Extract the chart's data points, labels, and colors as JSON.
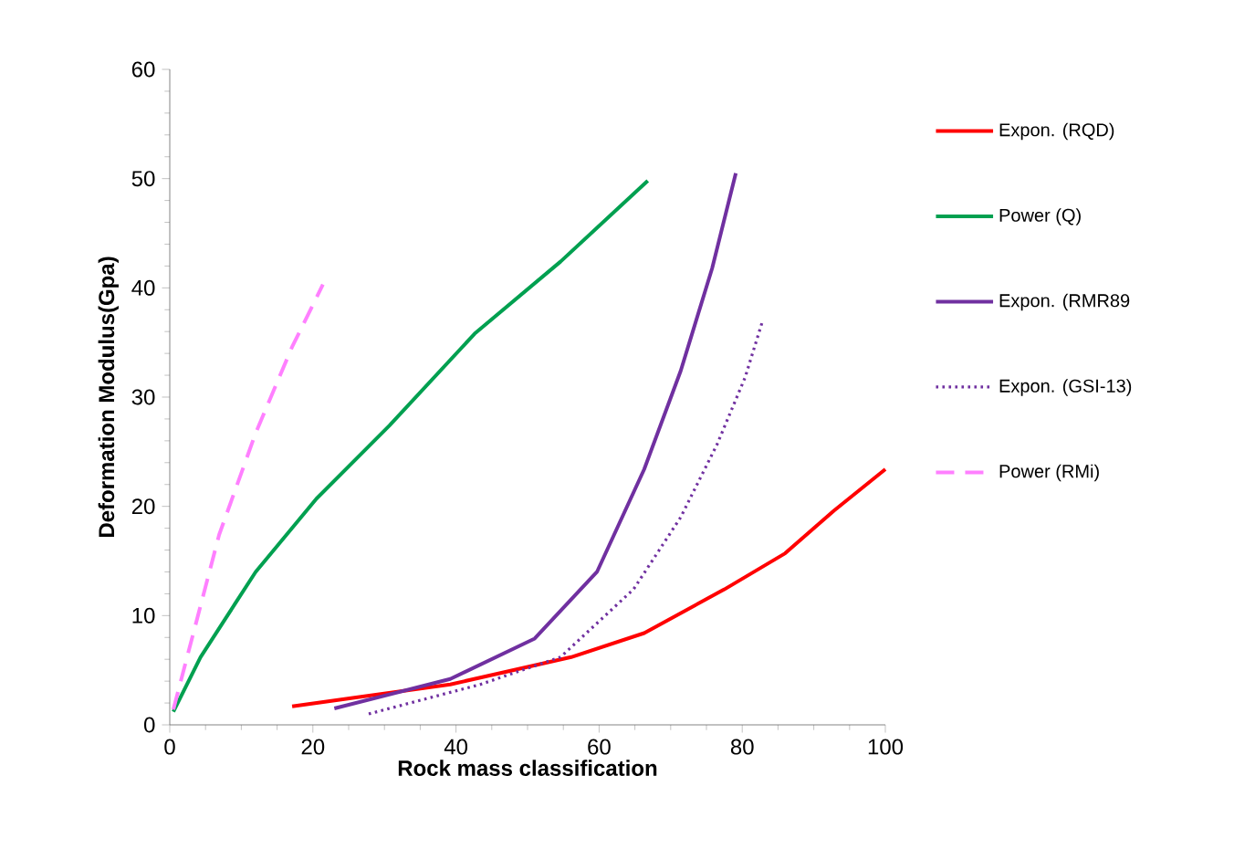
{
  "chart_data": {
    "type": "line",
    "xlabel": "Rock mass classification",
    "ylabel": "Deformation Modulus(Gpa)",
    "xlim": [
      0,
      100
    ],
    "ylim": [
      0,
      60
    ],
    "xticks": [
      0,
      20,
      40,
      60,
      80,
      100
    ],
    "yticks": [
      0,
      10,
      20,
      30,
      40,
      50,
      60
    ],
    "grid": false,
    "legend": "right",
    "marker": "none",
    "series": [
      {
        "name": "Expon. (RQD)",
        "color": "#ff0000",
        "line_style": "solid",
        "x": [
          17.1,
          39.2,
          56.1,
          66.3,
          77.5,
          86,
          92.8,
          100
        ],
        "values": [
          1.7,
          3.7,
          6.2,
          8.4,
          12.4,
          15.7,
          19.6,
          23.4
        ]
      },
      {
        "name": "Power (Q)",
        "color": "#00a050",
        "line_style": "solid",
        "x": [
          0.5,
          4.3,
          12,
          20.5,
          30.7,
          42.6,
          54.6,
          66.8
        ],
        "values": [
          1.2,
          6.2,
          14,
          20.7,
          27.4,
          35.8,
          42.4,
          49.8
        ]
      },
      {
        "name": "Expon. (RMR89",
        "color": "#7030a0",
        "line_style": "solid",
        "x": [
          23,
          39.2,
          51,
          59.7,
          66.3,
          71.4,
          75.8,
          79.1
        ],
        "values": [
          1.5,
          4.2,
          7.9,
          14,
          23.4,
          32.4,
          41.8,
          50.5
        ]
      },
      {
        "name": "Expon. (GSI-13)",
        "color": "#7030a0",
        "line_style": "dotted",
        "x": [
          27.8,
          43.4,
          54.6,
          64.8,
          71.4,
          76.5,
          80.4,
          82.9
        ],
        "values": [
          1.0,
          3.7,
          6.2,
          12.4,
          19,
          25.7,
          31.8,
          37.1
        ]
      },
      {
        "name": "Power (RMi)",
        "color": "#ff80ff",
        "line_style": "dashed",
        "x": [
          0.5,
          6.9,
          12,
          17.1,
          21.4
        ],
        "values": [
          1.4,
          17.4,
          26.7,
          34.6,
          40.3
        ]
      }
    ]
  }
}
